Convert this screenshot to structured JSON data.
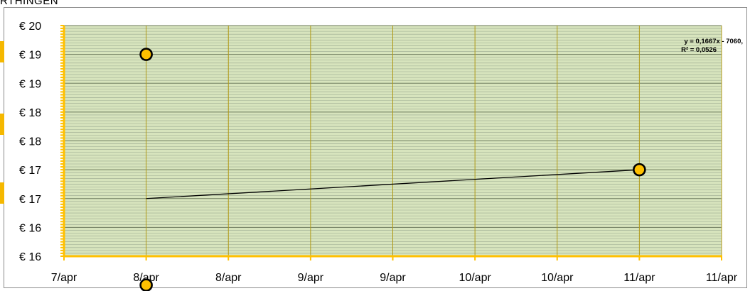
{
  "header": {
    "partial_title": "RTHINGEN"
  },
  "colors": {
    "plot_bg": "#d7e4bd",
    "vgrid": "#b09a18",
    "hgrid_minor": "#9aa890",
    "axis": "#ffc000",
    "marker_fill": "#ffc000",
    "marker_stroke": "#000000",
    "trend": "#000000"
  },
  "chart_data": {
    "type": "scatter",
    "title": "",
    "xlabel": "",
    "ylabel": "",
    "x_is_date": true,
    "xlim": [
      "7/apr",
      "11/apr (end)"
    ],
    "ylim": [
      16,
      20
    ],
    "x_tick_labels": [
      "7/apr",
      "8/apr",
      "8/apr",
      "9/apr",
      "9/apr",
      "10/apr",
      "10/apr",
      "11/apr",
      "11/apr"
    ],
    "y_tick_labels": [
      "€ 16",
      "€ 16",
      "€ 17",
      "€ 17",
      "€ 18",
      "€ 18",
      "€ 19",
      "€ 19",
      "€ 20"
    ],
    "grid": true,
    "series": [
      {
        "points": [
          {
            "x": "8/apr",
            "y": 19.5
          },
          {
            "x": "8/apr",
            "y": 15.5
          },
          {
            "x": "11/apr",
            "y": 17.5
          }
        ]
      }
    ],
    "trendline": {
      "equation_line1": "y = 0,1667x - 7060,",
      "equation_line2": "R² = 0,0526",
      "from": {
        "x": "8/apr",
        "y": 17.0
      },
      "to": {
        "x": "11/apr",
        "y": 17.5
      }
    }
  }
}
